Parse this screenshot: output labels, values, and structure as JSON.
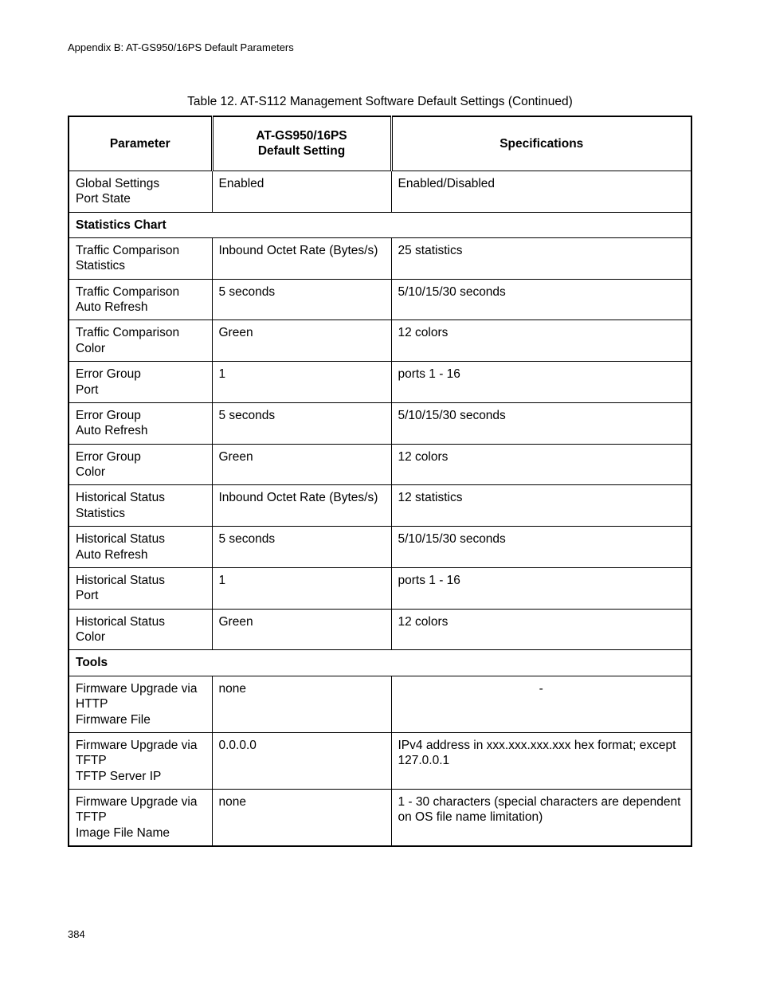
{
  "header": "Appendix B: AT-GS950/16PS Default Parameters",
  "caption": "Table 12. AT-S112 Management Software Default Settings (Continued)",
  "columns": {
    "c1": "Parameter",
    "c2": "AT-GS950/16PS\nDefault Setting",
    "c3": "Specifications"
  },
  "rows": [
    {
      "type": "data",
      "p": "Global Settings\nPort State",
      "d": "Enabled",
      "s": "Enabled/Disabled"
    },
    {
      "type": "section",
      "label": "Statistics Chart"
    },
    {
      "type": "data",
      "p": "Traffic Comparison\nStatistics",
      "d": "Inbound Octet Rate (Bytes/s)",
      "s": "25 statistics"
    },
    {
      "type": "data",
      "p": "Traffic Comparison\nAuto Refresh",
      "d": "5 seconds",
      "s": "5/10/15/30 seconds"
    },
    {
      "type": "data",
      "p": "Traffic Comparison\nColor",
      "d": "Green",
      "s": "12 colors"
    },
    {
      "type": "data",
      "p": "Error Group\nPort",
      "d": "1",
      "s": "ports 1 - 16"
    },
    {
      "type": "data",
      "p": "Error Group\nAuto Refresh",
      "d": "5 seconds",
      "s": "5/10/15/30 seconds"
    },
    {
      "type": "data",
      "p": "Error Group\nColor",
      "d": "Green",
      "s": "12 colors"
    },
    {
      "type": "data",
      "p": "Historical Status\nStatistics",
      "d": "Inbound Octet Rate (Bytes/s)",
      "s": "12 statistics"
    },
    {
      "type": "data",
      "p": "Historical Status\nAuto Refresh",
      "d": "5 seconds",
      "s": "5/10/15/30 seconds"
    },
    {
      "type": "data",
      "p": "Historical Status\nPort",
      "d": "1",
      "s": "ports 1 - 16"
    },
    {
      "type": "data",
      "p": "Historical Status\nColor",
      "d": "Green",
      "s": "12 colors"
    },
    {
      "type": "section",
      "label": "Tools"
    },
    {
      "type": "data",
      "p": "Firmware Upgrade via HTTP\nFirmware File",
      "d": "none",
      "s": "-",
      "center_s": true
    },
    {
      "type": "data",
      "p": "Firmware Upgrade via TFTP\nTFTP Server IP",
      "d": "0.0.0.0",
      "s": "IPv4 address in xxx.xxx.xxx.xxx hex format; except 127.0.0.1"
    },
    {
      "type": "data",
      "p": "Firmware Upgrade via TFTP\nImage File Name",
      "d": "none",
      "s": "1 - 30 characters (special characters are dependent on OS file name limitation)"
    }
  ],
  "page_number": "384"
}
